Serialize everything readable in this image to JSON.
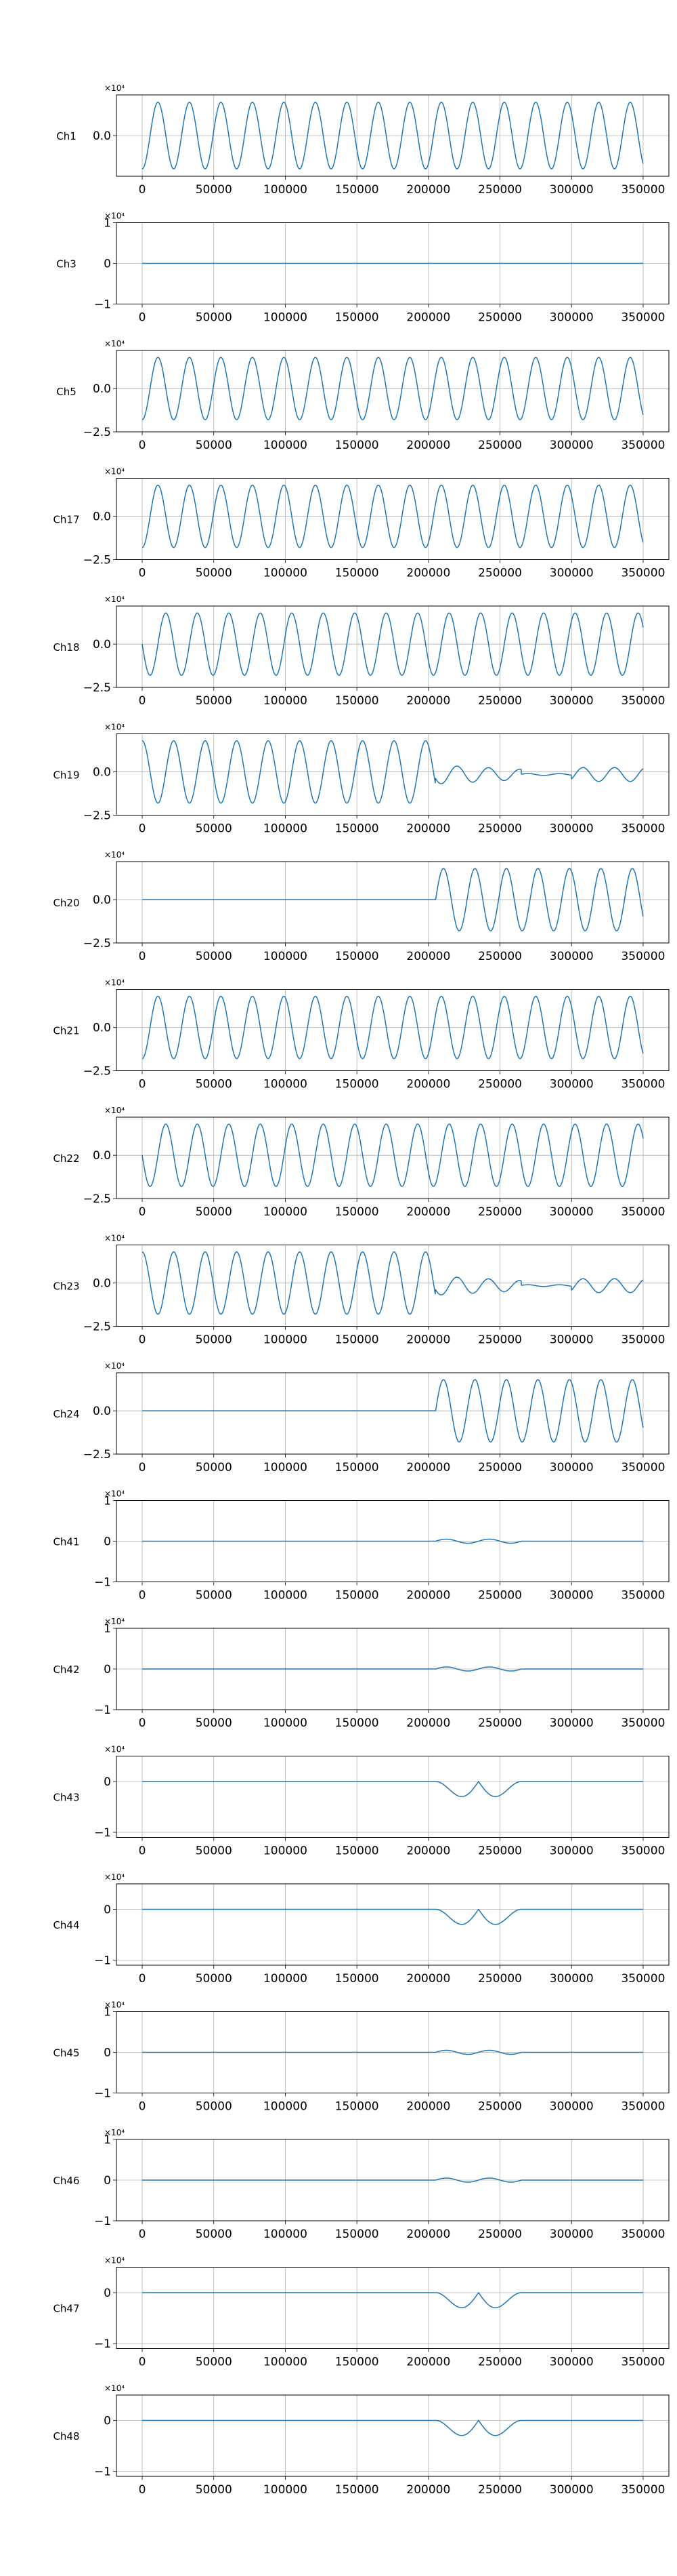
{
  "figure": {
    "x_tick_labels": [
      "0",
      "50000",
      "100000",
      "150000",
      "200000",
      "250000",
      "300000",
      "350000"
    ],
    "x_ticks": [
      0,
      50000,
      100000,
      150000,
      200000,
      250000,
      300000,
      350000
    ],
    "xlim": [
      -18000,
      368000
    ],
    "grid": true,
    "line_color": "#1f77b4"
  },
  "chart_data": [
    {
      "type": "line",
      "channel": "Ch1",
      "ylabel": "Ch1",
      "exp_label": "×10⁴",
      "yticks": [
        0.0
      ],
      "ytick_labels": [
        "0.0"
      ],
      "ylim": [
        -2.2,
        2.2
      ],
      "pattern": "sine",
      "amplitude": 1.8,
      "period": 22000,
      "phase": -1.5708,
      "x_range": [
        0,
        350000
      ]
    },
    {
      "type": "line",
      "channel": "Ch3",
      "ylabel": "Ch3",
      "exp_label": "×10⁴",
      "yticks": [
        1,
        0,
        -1
      ],
      "ytick_labels": [
        "1",
        "0",
        "−1"
      ],
      "ylim": [
        -1,
        1
      ],
      "pattern": "flat",
      "x_range": [
        0,
        350000
      ]
    },
    {
      "type": "line",
      "channel": "Ch5",
      "ylabel": "Ch5",
      "exp_label": "×10⁴",
      "yticks": [
        0.0,
        -2.5
      ],
      "ytick_labels": [
        "0.0",
        "−2.5"
      ],
      "ylim": [
        -2.5,
        2.2
      ],
      "pattern": "sine",
      "amplitude": 1.8,
      "period": 22000,
      "phase": -1.5708,
      "x_range": [
        0,
        350000
      ]
    },
    {
      "type": "line",
      "channel": "Ch17",
      "ylabel": "Ch17",
      "exp_label": "×10⁴",
      "yticks": [
        0.0,
        -2.5
      ],
      "ytick_labels": [
        "0.0",
        "−2.5"
      ],
      "ylim": [
        -2.5,
        2.2
      ],
      "pattern": "sine",
      "amplitude": 1.8,
      "period": 22000,
      "phase": -1.5708,
      "x_range": [
        0,
        350000
      ]
    },
    {
      "type": "line",
      "channel": "Ch18",
      "ylabel": "Ch18",
      "exp_label": "×10⁴",
      "yticks": [
        0.0,
        -2.5
      ],
      "ytick_labels": [
        "0.0",
        "−2.5"
      ],
      "ylim": [
        -2.5,
        2.2
      ],
      "pattern": "sine",
      "amplitude": 1.8,
      "period": 22000,
      "phase": 3.1416,
      "x_range": [
        0,
        350000
      ]
    },
    {
      "type": "line",
      "channel": "Ch19",
      "ylabel": "Ch19",
      "exp_label": "×10⁴",
      "yticks": [
        0.0,
        -2.5
      ],
      "ytick_labels": [
        "0.0",
        "−2.5"
      ],
      "ylim": [
        -2.5,
        2.2
      ],
      "pattern": "sine_then_decay",
      "amplitude": 1.8,
      "period": 22000,
      "phase": 1.5708,
      "switch_x": 205000,
      "x_range": [
        0,
        350000
      ]
    },
    {
      "type": "line",
      "channel": "Ch20",
      "ylabel": "Ch20",
      "exp_label": "×10⁴",
      "yticks": [
        0.0,
        -2.5
      ],
      "ytick_labels": [
        "0.0",
        "−2.5"
      ],
      "ylim": [
        -2.5,
        2.2
      ],
      "pattern": "flat_then_sine",
      "amplitude": 1.8,
      "period": 22000,
      "phase": 0,
      "switch_x": 205000,
      "x_range": [
        0,
        350000
      ]
    },
    {
      "type": "line",
      "channel": "Ch21",
      "ylabel": "Ch21",
      "exp_label": "×10⁴",
      "yticks": [
        0.0,
        -2.5
      ],
      "ytick_labels": [
        "0.0",
        "−2.5"
      ],
      "ylim": [
        -2.5,
        2.2
      ],
      "pattern": "sine",
      "amplitude": 1.8,
      "period": 22000,
      "phase": -1.5708,
      "x_range": [
        0,
        350000
      ]
    },
    {
      "type": "line",
      "channel": "Ch22",
      "ylabel": "Ch22",
      "exp_label": "×10⁴",
      "yticks": [
        0.0,
        -2.5
      ],
      "ytick_labels": [
        "0.0",
        "−2.5"
      ],
      "ylim": [
        -2.5,
        2.2
      ],
      "pattern": "sine",
      "amplitude": 1.8,
      "period": 22000,
      "phase": 3.1416,
      "x_range": [
        0,
        350000
      ]
    },
    {
      "type": "line",
      "channel": "Ch23",
      "ylabel": "Ch23",
      "exp_label": "×10⁴",
      "yticks": [
        0.0,
        -2.5
      ],
      "ytick_labels": [
        "0.0",
        "−2.5"
      ],
      "ylim": [
        -2.5,
        2.2
      ],
      "pattern": "sine_then_decay",
      "amplitude": 1.8,
      "period": 22000,
      "phase": 1.5708,
      "switch_x": 205000,
      "x_range": [
        0,
        350000
      ]
    },
    {
      "type": "line",
      "channel": "Ch24",
      "ylabel": "Ch24",
      "exp_label": "×10⁴",
      "yticks": [
        0.0,
        -2.5
      ],
      "ytick_labels": [
        "0.0",
        "−2.5"
      ],
      "ylim": [
        -2.5,
        2.2
      ],
      "pattern": "flat_then_sine",
      "amplitude": 1.8,
      "period": 22000,
      "phase": 0,
      "switch_x": 205000,
      "x_range": [
        0,
        350000
      ]
    },
    {
      "type": "line",
      "channel": "Ch41",
      "ylabel": "Ch41",
      "exp_label": "×10⁴",
      "yticks": [
        1,
        0,
        -1
      ],
      "ytick_labels": [
        "1",
        "0",
        "−1"
      ],
      "ylim": [
        -1,
        1
      ],
      "pattern": "flat_small_bumps",
      "bump_amplitude": 0.05,
      "x_range": [
        0,
        350000
      ]
    },
    {
      "type": "line",
      "channel": "Ch42",
      "ylabel": "Ch42",
      "exp_label": "×10⁴",
      "yticks": [
        1,
        0,
        -1
      ],
      "ytick_labels": [
        "1",
        "0",
        "−1"
      ],
      "ylim": [
        -1,
        1
      ],
      "pattern": "flat_small_bumps",
      "bump_amplitude": 0.05,
      "x_range": [
        0,
        350000
      ]
    },
    {
      "type": "line",
      "channel": "Ch43",
      "ylabel": "Ch43",
      "exp_label": "×10⁴",
      "yticks": [
        0,
        -1
      ],
      "ytick_labels": [
        "0",
        "−1"
      ],
      "ylim": [
        -1.1,
        0.5
      ],
      "pattern": "flat_dips",
      "dip_depth": 0.35,
      "dip_range": [
        205000,
        265000
      ],
      "x_range": [
        0,
        350000
      ]
    },
    {
      "type": "line",
      "channel": "Ch44",
      "ylabel": "Ch44",
      "exp_label": "×10⁴",
      "yticks": [
        0,
        -1
      ],
      "ytick_labels": [
        "0",
        "−1"
      ],
      "ylim": [
        -1.1,
        0.5
      ],
      "pattern": "flat_dips",
      "dip_depth": 0.35,
      "dip_range": [
        205000,
        265000
      ],
      "x_range": [
        0,
        350000
      ]
    },
    {
      "type": "line",
      "channel": "Ch45",
      "ylabel": "Ch45",
      "exp_label": "×10⁴",
      "yticks": [
        1,
        0,
        -1
      ],
      "ytick_labels": [
        "1",
        "0",
        "−1"
      ],
      "ylim": [
        -1,
        1
      ],
      "pattern": "flat_small_bumps",
      "bump_amplitude": 0.05,
      "x_range": [
        0,
        350000
      ]
    },
    {
      "type": "line",
      "channel": "Ch46",
      "ylabel": "Ch46",
      "exp_label": "×10⁴",
      "yticks": [
        1,
        0,
        -1
      ],
      "ytick_labels": [
        "1",
        "0",
        "−1"
      ],
      "ylim": [
        -1,
        1
      ],
      "pattern": "flat_small_bumps",
      "bump_amplitude": 0.05,
      "x_range": [
        0,
        350000
      ]
    },
    {
      "type": "line",
      "channel": "Ch47",
      "ylabel": "Ch47",
      "exp_label": "×10⁴",
      "yticks": [
        0,
        -1
      ],
      "ytick_labels": [
        "0",
        "−1"
      ],
      "ylim": [
        -1.1,
        0.5
      ],
      "pattern": "flat_dips",
      "dip_depth": 0.35,
      "dip_range": [
        205000,
        265000
      ],
      "x_range": [
        0,
        350000
      ]
    },
    {
      "type": "line",
      "channel": "Ch48",
      "ylabel": "Ch48",
      "exp_label": "×10⁴",
      "yticks": [
        0,
        -1
      ],
      "ytick_labels": [
        "0",
        "−1"
      ],
      "ylim": [
        -1.1,
        0.5
      ],
      "pattern": "flat_dips",
      "dip_depth": 0.35,
      "dip_range": [
        205000,
        265000
      ],
      "x_range": [
        0,
        350000
      ]
    }
  ]
}
